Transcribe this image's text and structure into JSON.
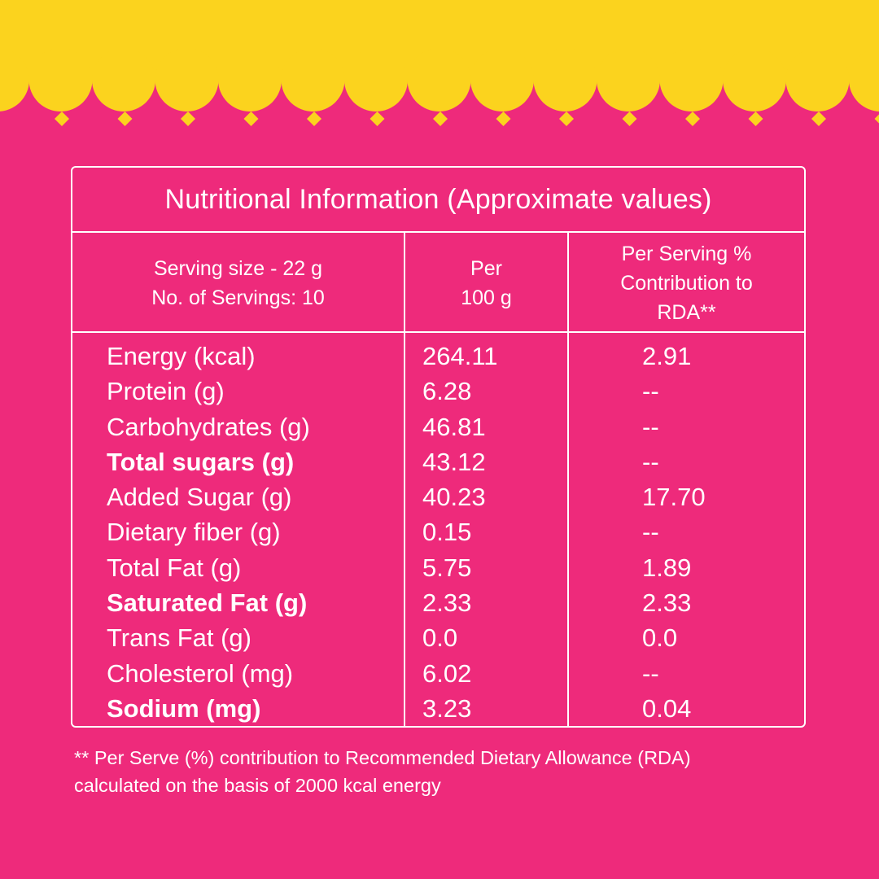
{
  "colors": {
    "background": "#EE2A7B",
    "banner": "#FBD31E",
    "text": "#FFFFFF"
  },
  "table": {
    "title": "Nutritional Information (Approximate values)",
    "header": {
      "serving_line1": "Serving size - 22 g",
      "serving_line2": "No. of Servings: 10",
      "per100_line1": "Per",
      "per100_line2": "100 g",
      "rda_line1": "Per Serving %",
      "rda_line2": "Contribution to",
      "rda_line3": "RDA**"
    },
    "rows": [
      {
        "name": "Energy (kcal)",
        "per100": "264.11",
        "rda": "2.91",
        "bold": false
      },
      {
        "name": "Protein (g)",
        "per100": "6.28",
        "rda": "--",
        "bold": false
      },
      {
        "name": "Carbohydrates (g)",
        "per100": "46.81",
        "rda": "--",
        "bold": false
      },
      {
        "name": "Total sugars (g)",
        "per100": "43.12",
        "rda": "--",
        "bold": true
      },
      {
        "name": "Added Sugar (g)",
        "per100": "40.23",
        "rda": "17.70",
        "bold": false
      },
      {
        "name": "Dietary fiber (g)",
        "per100": "0.15",
        "rda": "--",
        "bold": false
      },
      {
        "name": "Total Fat (g)",
        "per100": "5.75",
        "rda": "1.89",
        "bold": false
      },
      {
        "name": "Saturated Fat (g)",
        "per100": "2.33",
        "rda": "2.33",
        "bold": true
      },
      {
        "name": "Trans Fat (g)",
        "per100": "0.0",
        "rda": "0.0",
        "bold": false
      },
      {
        "name": "Cholesterol (mg)",
        "per100": "6.02",
        "rda": "--",
        "bold": false
      },
      {
        "name": "Sodium (mg)",
        "per100": "3.23",
        "rda": "0.04",
        "bold": true
      }
    ]
  },
  "footnote": {
    "line1": "** Per Serve (%) contribution to Recommended Dietary Allowance (RDA)",
    "line2": "calculated on the basis of 2000 kcal energy"
  }
}
